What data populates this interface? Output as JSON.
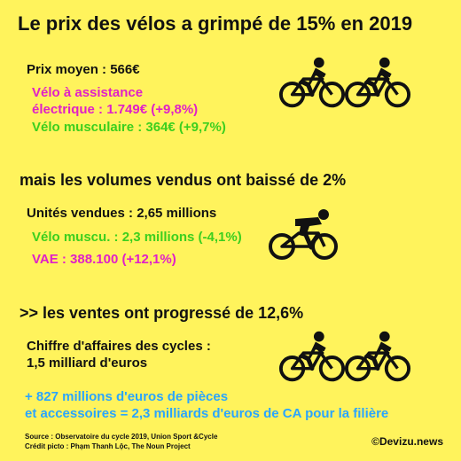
{
  "title": "Le prix des vélos a grimpé de 15% en 2019",
  "section1": {
    "price": "Prix moyen : 566€",
    "vae_line1": "Vélo à assistance",
    "vae_line2": "électrique : 1.749€ (+9,8%)",
    "muscular": "Vélo musculaire : 364€ (+9,7%)"
  },
  "section2": {
    "heading": "mais les volumes vendus ont baissé de 2%",
    "units": "Unités vendues : 2,65 millions",
    "muscu": "Vélo muscu. : 2,3 millions (-4,1%)",
    "vae": "VAE : 388.100 (+12,1%)"
  },
  "section3": {
    "heading": ">> les ventes ont progressé de 12,6%",
    "revenue_line1": "Chiffre d'affaires des cycles :",
    "revenue_line2": "1,5 milliard d'euros",
    "parts_line1": "+ 827 millions d'euros de pièces",
    "parts_line2": "et accessoires = 2,3 milliards d'euros de CA pour la filière"
  },
  "footer": {
    "source": "Source : Observatoire du cycle 2019, Union Sport &Cycle",
    "credit": "Crédit picto : Phạm Thanh Lộc, The Noun Project",
    "brand": "©Devizu.news"
  },
  "icons": [
    "ebike-icon",
    "ebike-icon",
    "racing-bike-icon",
    "ebike-icon",
    "ebike-icon"
  ],
  "colors": {
    "background": "#fff35c",
    "magenta": "#e020c8",
    "green": "#3ccf1e",
    "blue": "#2aa5ff"
  }
}
